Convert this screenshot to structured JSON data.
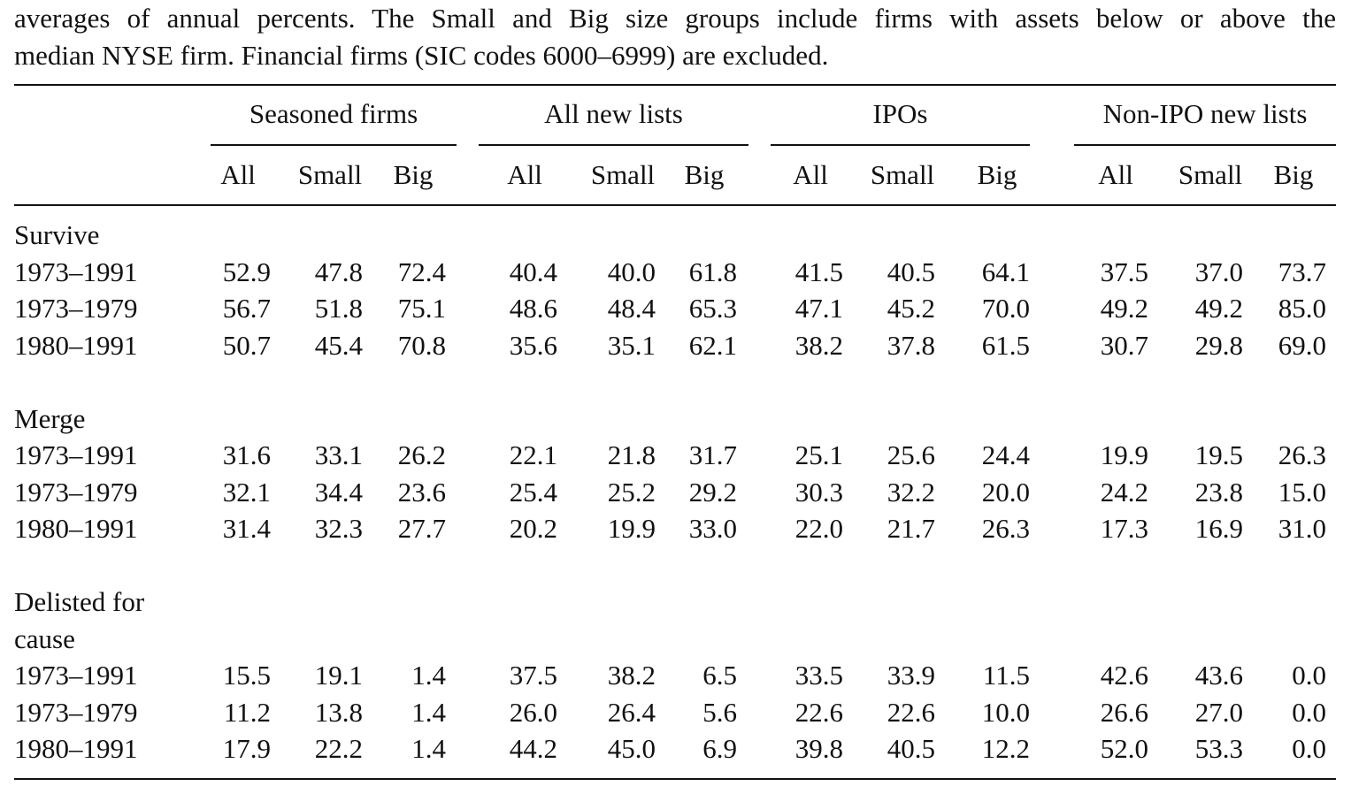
{
  "caption": {
    "line1": "averages of annual percents. The Small and Big size groups include firms with assets below or above the",
    "line2": "median NYSE firm. Financial firms (SIC codes 6000–6999) are excluded."
  },
  "table": {
    "group_headers": [
      "Seasoned firms",
      "All new lists",
      "IPOs",
      "Non-IPO new lists"
    ],
    "sub_headers": [
      "All",
      "Small",
      "Big",
      "All",
      "Small",
      "Big",
      "All",
      "Small",
      "Big",
      "All",
      "Small",
      "Big"
    ],
    "sections": [
      {
        "label_lines": [
          "Survive"
        ],
        "rows": [
          {
            "period": "1973–1991",
            "values": [
              "52.9",
              "47.8",
              "72.4",
              "40.4",
              "40.0",
              "61.8",
              "41.5",
              "40.5",
              "64.1",
              "37.5",
              "37.0",
              "73.7"
            ]
          },
          {
            "period": "1973–1979",
            "values": [
              "56.7",
              "51.8",
              "75.1",
              "48.6",
              "48.4",
              "65.3",
              "47.1",
              "45.2",
              "70.0",
              "49.2",
              "49.2",
              "85.0"
            ]
          },
          {
            "period": "1980–1991",
            "values": [
              "50.7",
              "45.4",
              "70.8",
              "35.6",
              "35.1",
              "62.1",
              "38.2",
              "37.8",
              "61.5",
              "30.7",
              "29.8",
              "69.0"
            ]
          }
        ]
      },
      {
        "label_lines": [
          "Merge"
        ],
        "rows": [
          {
            "period": "1973–1991",
            "values": [
              "31.6",
              "33.1",
              "26.2",
              "22.1",
              "21.8",
              "31.7",
              "25.1",
              "25.6",
              "24.4",
              "19.9",
              "19.5",
              "26.3"
            ]
          },
          {
            "period": "1973–1979",
            "values": [
              "32.1",
              "34.4",
              "23.6",
              "25.4",
              "25.2",
              "29.2",
              "30.3",
              "32.2",
              "20.0",
              "24.2",
              "23.8",
              "15.0"
            ]
          },
          {
            "period": "1980–1991",
            "values": [
              "31.4",
              "32.3",
              "27.7",
              "20.2",
              "19.9",
              "33.0",
              "22.0",
              "21.7",
              "26.3",
              "17.3",
              "16.9",
              "31.0"
            ]
          }
        ]
      },
      {
        "label_lines": [
          "Delisted for",
          "cause"
        ],
        "rows": [
          {
            "period": "1973–1991",
            "values": [
              "15.5",
              "19.1",
              "1.4",
              "37.5",
              "38.2",
              "6.5",
              "33.5",
              "33.9",
              "11.5",
              "42.6",
              "43.6",
              "0.0"
            ]
          },
          {
            "period": "1973–1979",
            "values": [
              "11.2",
              "13.8",
              "1.4",
              "26.0",
              "26.4",
              "5.6",
              "22.6",
              "22.6",
              "10.0",
              "26.6",
              "27.0",
              "0.0"
            ]
          },
          {
            "period": "1980–1991",
            "values": [
              "17.9",
              "22.2",
              "1.4",
              "44.2",
              "45.0",
              "6.9",
              "39.8",
              "40.5",
              "12.2",
              "52.0",
              "53.3",
              "0.0"
            ]
          }
        ]
      }
    ]
  }
}
